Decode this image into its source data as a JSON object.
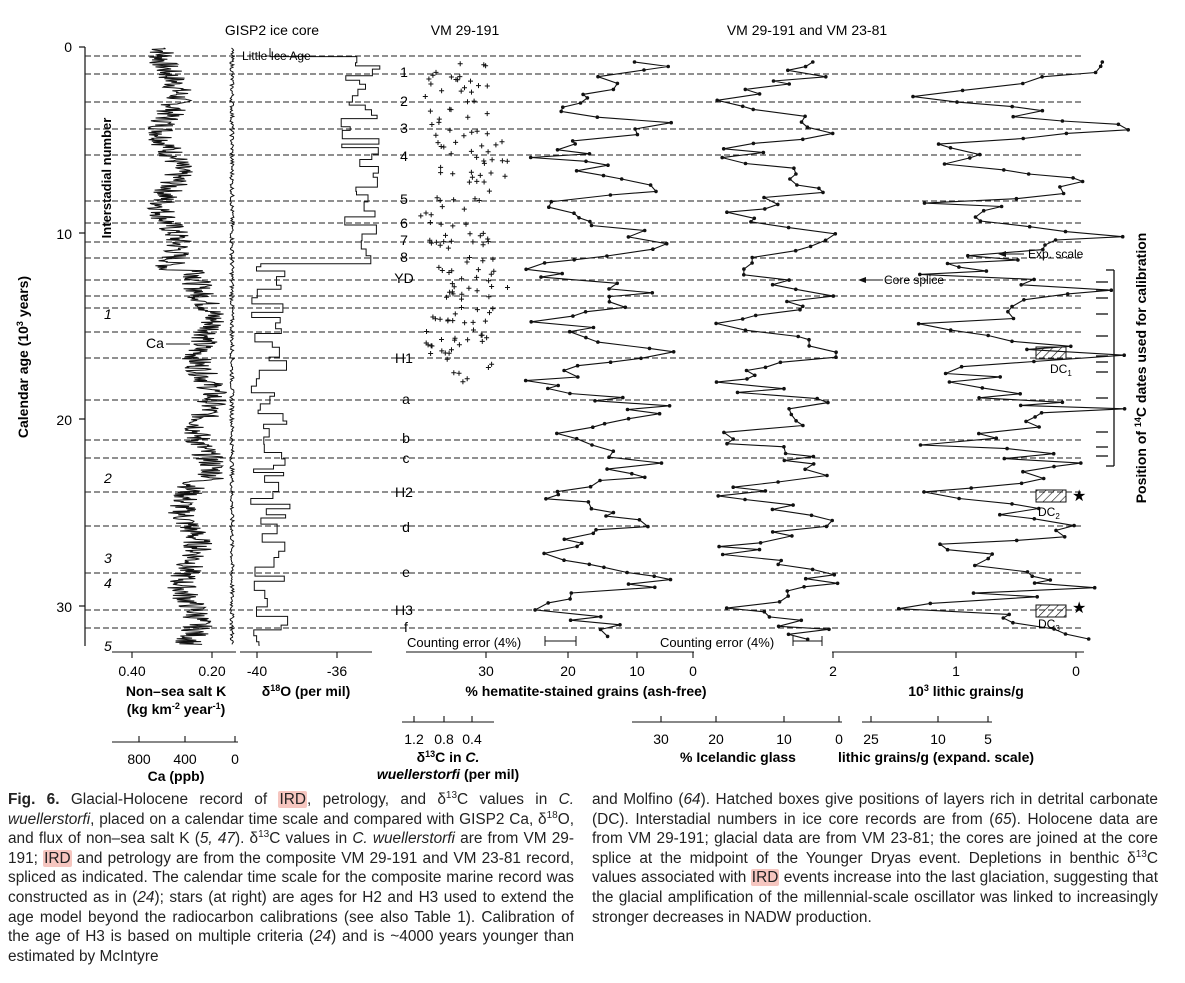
{
  "figure": {
    "headers": {
      "gisp2": "GISP2 ice core",
      "vm29": "VM 29-191",
      "vm29_23": "VM 29-191 and VM 23-81"
    },
    "y_axis": {
      "label_prefix": "Calendar age (10",
      "label_sup": "3",
      "label_suffix": " years)",
      "ticks": [
        "0",
        "10",
        "20",
        "30"
      ]
    },
    "interstadial_label": "Interstadial number",
    "interstadial_numbers": [
      "1",
      "2",
      "3",
      "4",
      "5"
    ],
    "event_labels": [
      "1",
      "2",
      "3",
      "4",
      "5",
      "6",
      "7",
      "8",
      "YD",
      "H1",
      "a",
      "b",
      "c",
      "H2",
      "d",
      "e",
      "H3",
      "f"
    ],
    "annotations": {
      "little_ice_age": "Little Ice Age",
      "ca": "Ca",
      "core_splice": "Core splice",
      "exp_scale": "Exp. scale",
      "counting_error_1": "Counting error (4%)",
      "counting_error_2": "Counting error (4%)",
      "dc1": "DC",
      "dc1_sub": "1",
      "dc2": "DC",
      "dc2_sub": "2",
      "dc3": "DC",
      "dc3_sub": "3"
    },
    "right_axis_label": {
      "prefix": "Position of ",
      "sup": "14",
      "suffix": "C dates used for calibration"
    },
    "bottom_axes": {
      "nss_k": {
        "ticks": [
          "0.40",
          "0.20"
        ],
        "label1": "Non–sea salt K",
        "label2_prefix": "(kg km",
        "label2_sup1": "-2",
        "label2_mid": " year",
        "label2_sup2": "-1",
        "label2_suffix": ")"
      },
      "ca": {
        "ticks": [
          "800",
          "400",
          "0"
        ],
        "label": "Ca (ppb)"
      },
      "d18o": {
        "ticks": [
          "-40",
          "-36"
        ],
        "label_pre": "δ",
        "label_sup": "18",
        "label_post": "O (per mil)"
      },
      "d13c": {
        "ticks": [
          "1.2",
          "0.8",
          "0.4"
        ],
        "label_pre": "δ",
        "label_sup": "13",
        "label_mid": "C in ",
        "label_it1": "C.",
        "label_it2": "wuellerstorfi",
        "label_post": " (per mil)"
      },
      "hematite": {
        "ticks": [
          "30",
          "20",
          "10",
          "0"
        ],
        "label": "% hematite-stained grains (ash-free)"
      },
      "glass": {
        "ticks": [
          "30",
          "20",
          "10",
          "0"
        ],
        "label": "% Icelandic glass"
      },
      "lithic": {
        "ticks": [
          "2",
          "1",
          "0"
        ],
        "label_sup": "3",
        "label_pre": "10",
        "label_post": " lithic grains/g"
      },
      "lithic_exp": {
        "ticks": [
          "25",
          "10",
          "5"
        ],
        "label": "lithic grains/g (expand. scale)"
      }
    },
    "colors": {
      "ink": "#111111",
      "highlight": "#f6c6c0"
    }
  },
  "caption": {
    "left": [
      {
        "t": "Fig. 6.",
        "s": "b"
      },
      {
        "t": " Glacial-Holocene record of "
      },
      {
        "t": "IRD",
        "s": "h"
      },
      {
        "t": ", petrology, and δ"
      },
      {
        "t": "13",
        "s": "sup"
      },
      {
        "t": "C values in "
      },
      {
        "t": "C. wuellerstorfi",
        "s": "i"
      },
      {
        "t": ", placed on a calendar time scale and compared with GISP2 Ca, δ"
      },
      {
        "t": "18",
        "s": "sup"
      },
      {
        "t": "O, and flux of non–sea salt K ("
      },
      {
        "t": "5, 47",
        "s": "i"
      },
      {
        "t": "). δ"
      },
      {
        "t": "13",
        "s": "sup"
      },
      {
        "t": "C values in "
      },
      {
        "t": "C. wuellerstorfi",
        "s": "i"
      },
      {
        "t": " are from VM 29-191; "
      },
      {
        "t": "IRD",
        "s": "h"
      },
      {
        "t": " and petrology are from the composite VM 29-191 and VM 23-81 record, spliced as indicated. The calendar time scale for the composite marine record was constructed as in ("
      },
      {
        "t": "24",
        "s": "i"
      },
      {
        "t": "); stars (at right) are ages for H2 and H3 used to extend the age model beyond the radiocarbon calibrations (see also Table 1). Calibration of the age of H3 is based on multiple criteria ("
      },
      {
        "t": "24",
        "s": "i"
      },
      {
        "t": ") and is ~4000 years younger than estimated by McIntyre"
      }
    ],
    "right": [
      {
        "t": "and Molfino ("
      },
      {
        "t": "64",
        "s": "i"
      },
      {
        "t": "). Hatched boxes give positions of layers rich in detrital carbonate (DC). Interstadial numbers in ice core records are from ("
      },
      {
        "t": "65",
        "s": "i"
      },
      {
        "t": "). Holocene data are from VM 29-191; glacial data are from VM 23-81; the cores are joined at the core splice at the midpoint of the Younger Dryas event. Depletions in benthic δ"
      },
      {
        "t": "13",
        "s": "sup"
      },
      {
        "t": "C values associated with "
      },
      {
        "t": "IRD",
        "s": "h"
      },
      {
        "t": " events increase into the last glaciation, suggesting that the glacial amplification of the millennial-scale oscillator was linked to increasingly stronger decreases in NADW production."
      }
    ]
  }
}
